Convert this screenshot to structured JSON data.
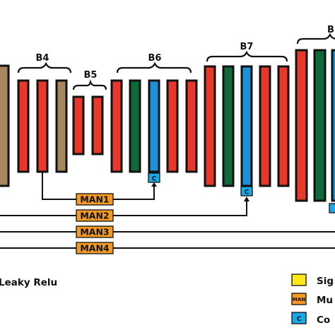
{
  "blocks": {
    "b4": "B4",
    "b5": "B5",
    "b6": "B6",
    "b7": "B7",
    "b8_partial": "B"
  },
  "man_boxes": [
    "MAN1",
    "MAN2",
    "MAN3",
    "MAN4"
  ],
  "concat_marker": "C",
  "legend": {
    "leaky_relu": "Leaky Relu",
    "sigmoid_partial": "Sig",
    "man_icon_text": "MAN",
    "man_partial": "Mu",
    "concat_icon_text": "C",
    "concat_partial": "Co"
  },
  "colors": {
    "red": "#e8382c",
    "green": "#0e6a36",
    "blue": "#1e90d8",
    "tan": "#a8875e",
    "orange": "#f39a24",
    "yellow": "#ffe81a",
    "cyan": "#18a9e6",
    "outline": "#111111"
  }
}
